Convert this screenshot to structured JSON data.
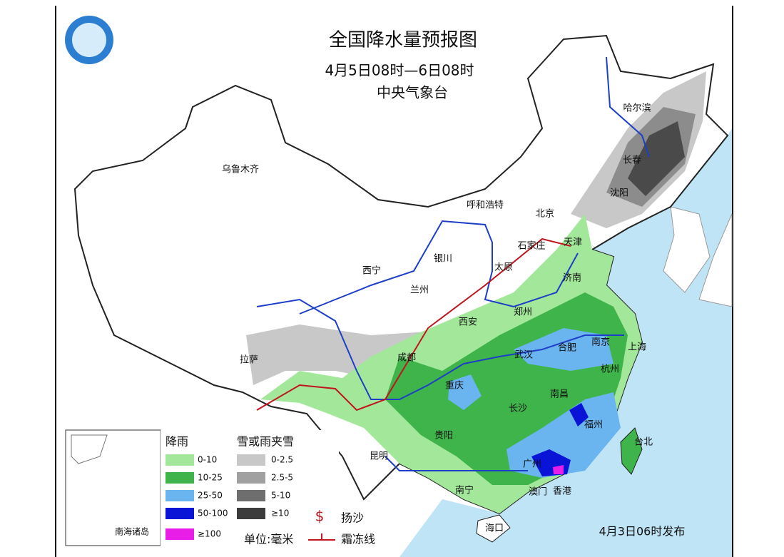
{
  "header": {
    "title": "全国降水量预报图",
    "period": "4月5日08时—6日08时",
    "agency": "中央气象台"
  },
  "cities": [
    "哈尔滨",
    "长春",
    "沈阳",
    "乌鲁木齐",
    "呼和浩特",
    "北京",
    "天津",
    "石家庄",
    "银川",
    "太原",
    "济南",
    "西宁",
    "兰州",
    "郑州",
    "西安",
    "合肥",
    "南京",
    "上海",
    "拉萨",
    "成都",
    "武汉",
    "杭州",
    "重庆",
    "南昌",
    "长沙",
    "福州",
    "台北",
    "贵阳",
    "昆明",
    "广州",
    "南宁",
    "澳门",
    "香港",
    "海口"
  ],
  "legend": {
    "rain_title": "降雨",
    "rain": [
      "0-10",
      "10-25",
      "25-50",
      "50-100",
      "≥100"
    ],
    "snow_title": "雪或雨夹雪",
    "snow": [
      "0-2.5",
      "2.5-5",
      "5-10",
      "≥10"
    ],
    "sand": "扬沙",
    "unit": "单位:毫米",
    "frost": "霜冻线"
  },
  "inset_label": "南海诸岛",
  "issued": "4月3日06时发布"
}
